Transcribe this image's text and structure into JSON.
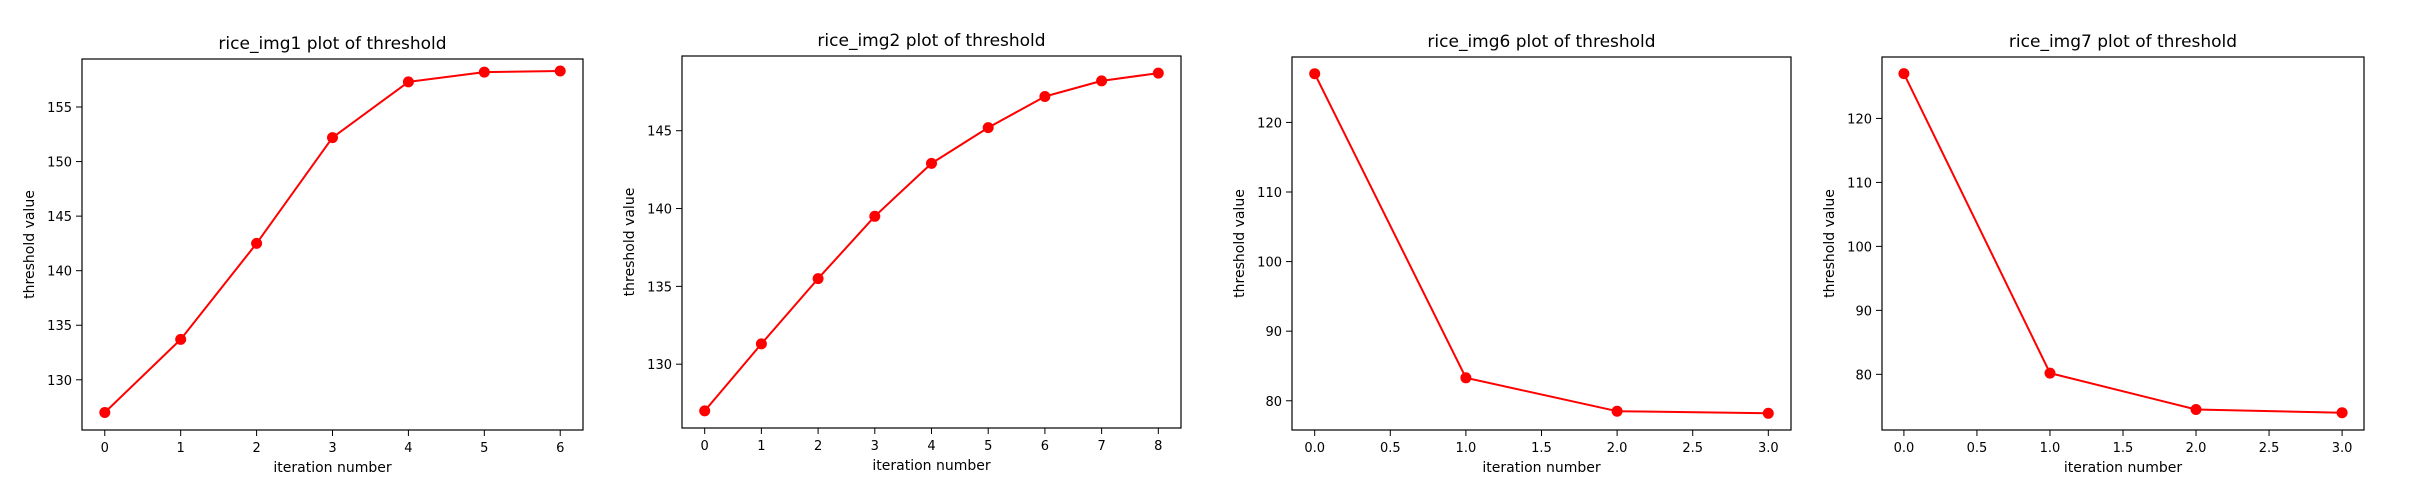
{
  "figure": {
    "panels": 4
  },
  "colors": {
    "series": "#ff0000",
    "axes": "#000000",
    "background": "#ffffff"
  },
  "chart_data": [
    {
      "type": "line",
      "title": "rice_img1 plot of threshold",
      "xlabel": "iteration number",
      "ylabel": "threshold value",
      "x": [
        0,
        1,
        2,
        3,
        4,
        5,
        6
      ],
      "y": [
        127.0,
        133.7,
        142.5,
        152.2,
        157.3,
        158.2,
        158.3
      ],
      "xlim": [
        -0.3,
        6.3
      ],
      "ylim": [
        125.4,
        159.4
      ],
      "xticks": [
        0,
        1,
        2,
        3,
        4,
        5,
        6
      ],
      "xtick_labels": [
        "0",
        "1",
        "2",
        "3",
        "4",
        "5",
        "6"
      ],
      "yticks": [
        130,
        135,
        140,
        145,
        150,
        155
      ],
      "ytick_labels": [
        "130",
        "135",
        "140",
        "145",
        "150",
        "155"
      ],
      "grid": false,
      "marker": "circle"
    },
    {
      "type": "line",
      "title": "rice_img2 plot of threshold",
      "xlabel": "iteration number",
      "ylabel": "threshold value",
      "x": [
        0,
        1,
        2,
        3,
        4,
        5,
        6,
        7,
        8
      ],
      "y": [
        127.0,
        131.3,
        135.5,
        139.5,
        142.9,
        145.2,
        147.2,
        148.2,
        148.7
      ],
      "xlim": [
        -0.4,
        8.4
      ],
      "ylim": [
        125.9,
        149.8
      ],
      "xticks": [
        0,
        1,
        2,
        3,
        4,
        5,
        6,
        7,
        8
      ],
      "xtick_labels": [
        "0",
        "1",
        "2",
        "3",
        "4",
        "5",
        "6",
        "7",
        "8"
      ],
      "yticks": [
        130,
        135,
        140,
        145
      ],
      "ytick_labels": [
        "130",
        "135",
        "140",
        "145"
      ],
      "grid": false,
      "marker": "circle"
    },
    {
      "type": "line",
      "title": "rice_img6 plot of threshold",
      "xlabel": "iteration number",
      "ylabel": "threshold value",
      "x": [
        0.0,
        1.0,
        2.0,
        3.0
      ],
      "y": [
        127.0,
        83.3,
        78.5,
        78.2
      ],
      "xlim": [
        -0.15,
        3.15
      ],
      "ylim": [
        75.8,
        129.4
      ],
      "xticks": [
        0.0,
        0.5,
        1.0,
        1.5,
        2.0,
        2.5,
        3.0
      ],
      "xtick_labels": [
        "0.0",
        "0.5",
        "1.0",
        "1.5",
        "2.0",
        "2.5",
        "3.0"
      ],
      "yticks": [
        80,
        90,
        100,
        110,
        120
      ],
      "ytick_labels": [
        "80",
        "90",
        "100",
        "110",
        "120"
      ],
      "grid": false,
      "marker": "circle"
    },
    {
      "type": "line",
      "title": "rice_img7 plot of threshold",
      "xlabel": "iteration number",
      "ylabel": "threshold value",
      "x": [
        0.0,
        1.0,
        2.0,
        3.0
      ],
      "y": [
        127.0,
        80.2,
        74.5,
        74.0
      ],
      "xlim": [
        -0.15,
        3.15
      ],
      "ylim": [
        71.3,
        129.6
      ],
      "xticks": [
        0.0,
        0.5,
        1.0,
        1.5,
        2.0,
        2.5,
        3.0
      ],
      "xtick_labels": [
        "0.0",
        "0.5",
        "1.0",
        "1.5",
        "2.0",
        "2.5",
        "3.0"
      ],
      "yticks": [
        80,
        90,
        100,
        110,
        120
      ],
      "ytick_labels": [
        "80",
        "90",
        "100",
        "110",
        "120"
      ],
      "grid": false,
      "marker": "circle"
    }
  ]
}
